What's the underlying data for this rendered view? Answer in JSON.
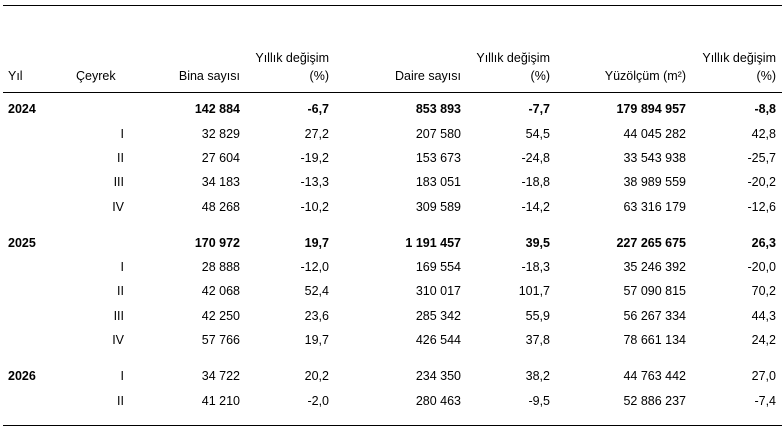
{
  "header": {
    "yil": "Yıl",
    "ceyrek": "Çeyrek",
    "bina": "Bina sayısı",
    "bina_change_l1": "Yıllık değişim",
    "bina_change_l2": "(%)",
    "daire": "Daire sayısı",
    "daire_change_l1": "Yıllık değişim",
    "daire_change_l2": "(%)",
    "yuzolcum": "Yüzölçüm (m²)",
    "yuzolcum_change_l1": "Yıllık değişim",
    "yuzolcum_change_l2": "(%)"
  },
  "rows": [
    {
      "year": "2024",
      "quarter": "",
      "bina": "142 884",
      "bina_pct": "-6,7",
      "daire": "853 893",
      "daire_pct": "-7,7",
      "yuzolcum": "179 894 957",
      "yuzolcum_pct": "-8,8"
    },
    {
      "year": "",
      "quarter": "I",
      "bina": "32 829",
      "bina_pct": "27,2",
      "daire": "207 580",
      "daire_pct": "54,5",
      "yuzolcum": "44 045 282",
      "yuzolcum_pct": "42,8"
    },
    {
      "year": "",
      "quarter": "II",
      "bina": "27 604",
      "bina_pct": "-19,2",
      "daire": "153 673",
      "daire_pct": "-24,8",
      "yuzolcum": "33 543 938",
      "yuzolcum_pct": "-25,7"
    },
    {
      "year": "",
      "quarter": "III",
      "bina": "34 183",
      "bina_pct": "-13,3",
      "daire": "183 051",
      "daire_pct": "-18,8",
      "yuzolcum": "38 989 559",
      "yuzolcum_pct": "-20,2"
    },
    {
      "year": "",
      "quarter": "IV",
      "bina": "48 268",
      "bina_pct": "-10,2",
      "daire": "309 589",
      "daire_pct": "-14,2",
      "yuzolcum": "63 316 179",
      "yuzolcum_pct": "-12,6"
    },
    {
      "year": "2025",
      "quarter": "",
      "bina": "170 972",
      "bina_pct": "19,7",
      "daire": "1 191 457",
      "daire_pct": "39,5",
      "yuzolcum": "227 265 675",
      "yuzolcum_pct": "26,3"
    },
    {
      "year": "",
      "quarter": "I",
      "bina": "28 888",
      "bina_pct": "-12,0",
      "daire": "169 554",
      "daire_pct": "-18,3",
      "yuzolcum": "35 246 392",
      "yuzolcum_pct": "-20,0"
    },
    {
      "year": "",
      "quarter": "II",
      "bina": "42 068",
      "bina_pct": "52,4",
      "daire": "310 017",
      "daire_pct": "101,7",
      "yuzolcum": "57 090 815",
      "yuzolcum_pct": "70,2"
    },
    {
      "year": "",
      "quarter": "III",
      "bina": "42 250",
      "bina_pct": "23,6",
      "daire": "285 342",
      "daire_pct": "55,9",
      "yuzolcum": "56 267 334",
      "yuzolcum_pct": "44,3"
    },
    {
      "year": "",
      "quarter": "IV",
      "bina": "57 766",
      "bina_pct": "19,7",
      "daire": "426 544",
      "daire_pct": "37,8",
      "yuzolcum": "78 661 134",
      "yuzolcum_pct": "24,2"
    },
    {
      "year": "2026",
      "quarter": "I",
      "bina": "34 722",
      "bina_pct": "20,2",
      "daire": "234 350",
      "daire_pct": "38,2",
      "yuzolcum": "44 763 442",
      "yuzolcum_pct": "27,0"
    },
    {
      "year": "",
      "quarter": "II",
      "bina": "41 210",
      "bina_pct": "-2,0",
      "daire": "280 463",
      "daire_pct": "-9,5",
      "yuzolcum": "52 886 237",
      "yuzolcum_pct": "-7,4"
    }
  ]
}
